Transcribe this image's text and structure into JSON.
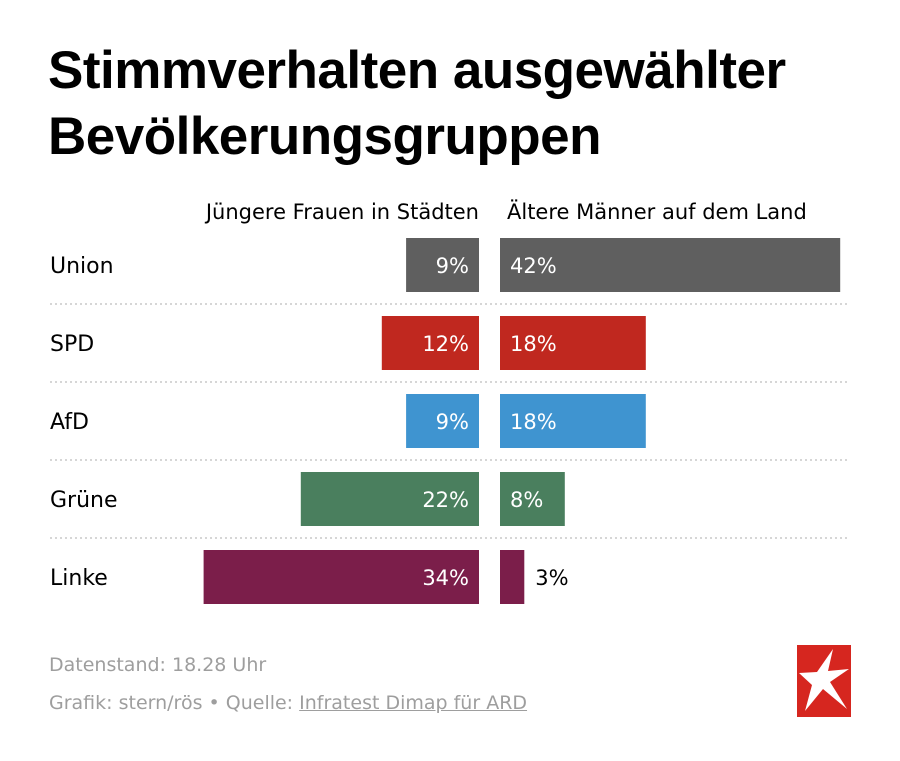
{
  "title": {
    "line1": "Stimmverhalten ausgewählter",
    "line2": "Bevölkerungsgruppen"
  },
  "chart_data": {
    "type": "bar",
    "orientation": "diverging-horizontal",
    "groups": [
      "Jüngere Frauen in Städten",
      "Ältere Männer auf dem Land"
    ],
    "categories": [
      "Union",
      "SPD",
      "AfD",
      "Grüne",
      "Linke"
    ],
    "colors": [
      "#5f5f5f",
      "#c0281f",
      "#3f94d0",
      "#4a7f5e",
      "#7b1e4a"
    ],
    "series": [
      {
        "name": "Jüngere Frauen in Städten",
        "values": [
          9,
          12,
          9,
          22,
          34
        ]
      },
      {
        "name": "Ältere Männer auf dem Land",
        "values": [
          42,
          18,
          18,
          8,
          3
        ]
      }
    ],
    "labels": {
      "left": [
        "9%",
        "12%",
        "9%",
        "22%",
        "34%"
      ],
      "right": [
        "42%",
        "18%",
        "18%",
        "8%",
        "3%"
      ]
    },
    "unit": "%"
  },
  "footer": {
    "status": "Datenstand: 18.28 Uhr",
    "credit_prefix": "Grafik: stern/rös • Quelle: ",
    "source_link": "Infratest Dimap für ARD"
  },
  "logo": {
    "name": "stern",
    "background": "#d6261f"
  }
}
